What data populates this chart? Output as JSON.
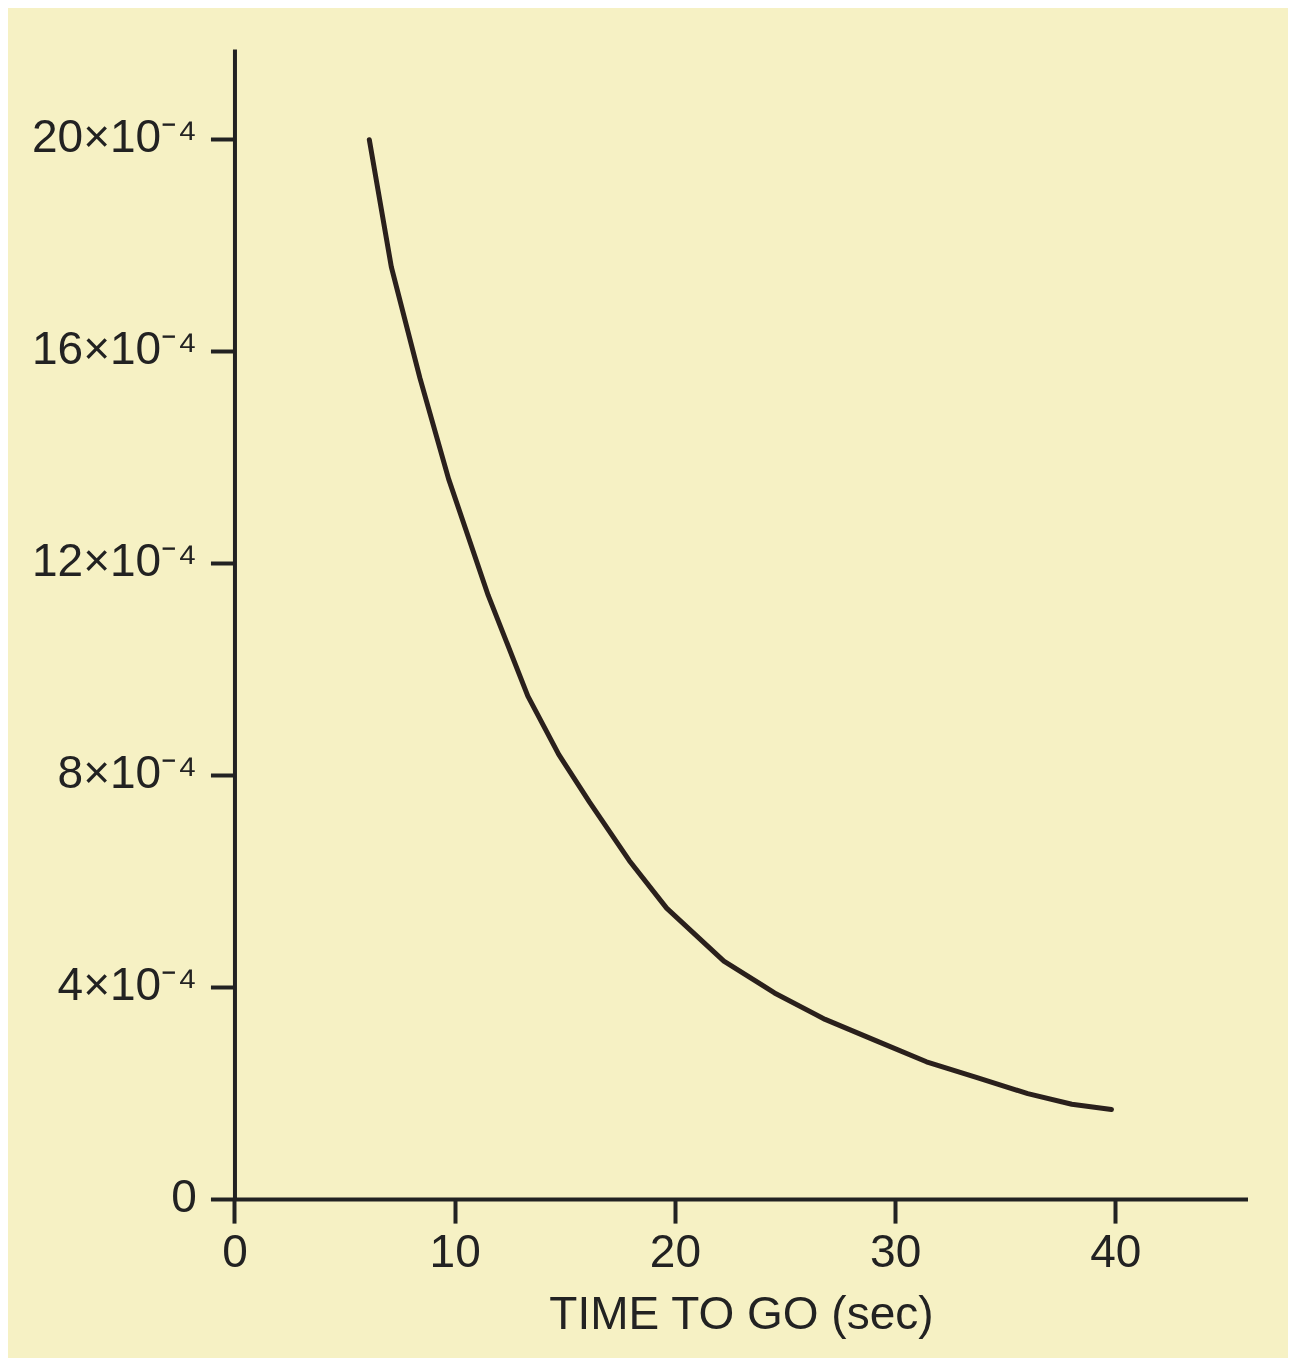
{
  "chart_data": {
    "type": "line",
    "xlabel": "TIME TO GO (sec)",
    "x": [
      6.1,
      7.1,
      8.4,
      9.7,
      11.5,
      13.3,
      14.7,
      16.1,
      17.9,
      19.6,
      22.2,
      24.5,
      26.8,
      29.1,
      31.4,
      33.7,
      36,
      38,
      39.8
    ],
    "series": [
      {
        "color": "#2a201c",
        "values": [
          0.002,
          0.00176,
          0.00155,
          0.00136,
          0.00114,
          0.00095,
          0.00084,
          0.00075,
          0.00064,
          0.00055,
          0.00045,
          0.00039,
          0.00034,
          0.0003,
          0.00026,
          0.00023,
          0.0002,
          0.00018,
          0.00017
        ]
      }
    ],
    "xlim": [
      0,
      46
    ],
    "xticks": [
      0,
      10,
      20,
      30,
      40
    ],
    "ylim": [
      0,
      0.00217
    ],
    "yticks": [
      {
        "value": 0,
        "label": "0"
      },
      {
        "value": 0.0004,
        "label": "4×10⁻⁴"
      },
      {
        "value": 0.0008,
        "label": "8×10⁻⁴"
      },
      {
        "value": 0.0012,
        "label": "12×10⁻⁴"
      },
      {
        "value": 0.0016,
        "label": "16×10⁻⁴"
      },
      {
        "value": 0.002,
        "label": "20×10⁻⁴"
      }
    ],
    "grid": false,
    "legend": false,
    "marker": "none",
    "line_style": "solid"
  }
}
